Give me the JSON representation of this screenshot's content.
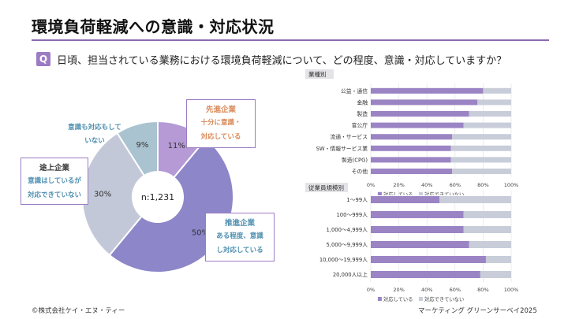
{
  "header": {
    "title": "環境負荷軽減への意識・対応状況",
    "q_badge": "Q",
    "question": "日頃、担当されている業務における環境負荷軽減について、どの程度、意識・対応していますか？"
  },
  "colors": {
    "accent": "#8a6bb0",
    "advanced": "#b59ad6",
    "promoting": "#8d86c9",
    "developing": "#c3c8d9",
    "none": "#a9c3d0",
    "bar_main": "#9b84c4",
    "bar_rest": "#c8cdd9"
  },
  "callouts": {
    "advanced": {
      "head": "先進企業",
      "line1": "十分に意識・",
      "line2": "対応している",
      "color": "#d98a5a"
    },
    "developing": {
      "head": "途上企業",
      "line1": "意識はしているが",
      "line2": "対応できていない",
      "color": "#4f8fb0"
    },
    "promoting": {
      "head": "推進企業",
      "line1": "ある程度、意識",
      "line2": "し対応している",
      "color": "#4f8fb0"
    },
    "none": {
      "line1": "意識も対応もして",
      "line2": "いない"
    }
  },
  "footer": {
    "left": "©株式会社ケイ・エヌ・ティー",
    "right": "マーケティング グリーンサーベイ2025"
  },
  "chart_data": [
    {
      "type": "pie",
      "title": "",
      "center_label": "n:1,231",
      "slices": [
        {
          "name": "十分に意識・対応している",
          "value": 11,
          "label": "11%"
        },
        {
          "name": "ある程度、意識し対応している",
          "value": 50,
          "label": "50%"
        },
        {
          "name": "意識はしているが対応できていない",
          "value": 30,
          "label": "30%"
        },
        {
          "name": "意識も対応もしていない",
          "value": 9,
          "label": "9%"
        }
      ]
    },
    {
      "type": "bar",
      "title": "業種別",
      "orientation": "horizontal",
      "stacked": true,
      "categories": [
        "公益・通信",
        "金融",
        "製造",
        "官公庁",
        "流通・サービス",
        "SW・情報サービス業",
        "製造(CPG)",
        "その他"
      ],
      "series": [
        {
          "name": "対応している",
          "values": [
            80,
            76,
            70,
            66,
            58,
            57,
            57,
            58
          ]
        },
        {
          "name": "対応できていない",
          "values": [
            20,
            24,
            30,
            34,
            42,
            43,
            43,
            42
          ]
        }
      ],
      "xlim": [
        0,
        100
      ],
      "ticks": [
        "0%",
        "20%",
        "40%",
        "60%",
        "80%",
        "100%"
      ],
      "legend": [
        "対応している",
        "対応できていない"
      ]
    },
    {
      "type": "bar",
      "title": "従業員規模別",
      "orientation": "horizontal",
      "stacked": true,
      "categories": [
        "1～99人",
        "100～999人",
        "1,000～4,999人",
        "5,000～9,999人",
        "10,000～19,999人",
        "20,000人以上"
      ],
      "series": [
        {
          "name": "対応している",
          "values": [
            49,
            66,
            66,
            70,
            82,
            78
          ]
        },
        {
          "name": "対応できていない",
          "values": [
            51,
            34,
            34,
            30,
            18,
            22
          ]
        }
      ],
      "xlim": [
        0,
        100
      ],
      "ticks": [
        "0%",
        "20%",
        "40%",
        "60%",
        "80%",
        "100%"
      ],
      "legend": [
        "対応している",
        "対応できていない"
      ]
    }
  ]
}
